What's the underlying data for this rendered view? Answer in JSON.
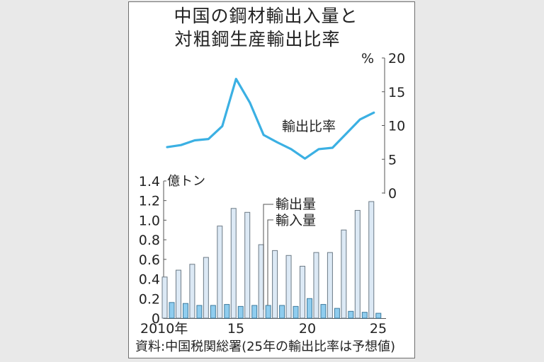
{
  "chart_data": {
    "type": "bar+line",
    "title": "中国の鋼材輸出入量と対粗鋼生産輸出比率",
    "title_lines": [
      "中国の鋼材輸出入量と",
      "対粗鋼生産輸出比率"
    ],
    "categories": [
      "2010",
      "2011",
      "2012",
      "2013",
      "2014",
      "2015",
      "2016",
      "2017",
      "2018",
      "2019",
      "2020",
      "2021",
      "2022",
      "2023",
      "2024",
      "2025"
    ],
    "xtick_labels": [
      "2010年",
      "15",
      "20",
      "25"
    ],
    "left_axis": {
      "unit": "億トン",
      "ticks": [
        "0",
        "0.2",
        "0.4",
        "0.6",
        "0.8",
        "1.0",
        "1.2",
        "1.4"
      ],
      "ylim": [
        0,
        1.4
      ]
    },
    "right_axis": {
      "unit": "%",
      "ticks": [
        "0",
        "5",
        "10",
        "15",
        "20"
      ],
      "ylim": [
        0,
        20
      ]
    },
    "series": [
      {
        "name": "輸出量",
        "type": "bar",
        "axis": "left",
        "color": "#dce9f5",
        "values": [
          0.42,
          0.49,
          0.55,
          0.62,
          0.94,
          1.12,
          1.08,
          0.75,
          0.69,
          0.64,
          0.53,
          0.67,
          0.67,
          0.9,
          1.1,
          1.19
        ]
      },
      {
        "name": "輸入量",
        "type": "bar",
        "axis": "left",
        "color": "#8fcdef",
        "values": [
          0.16,
          0.15,
          0.13,
          0.13,
          0.14,
          0.12,
          0.13,
          0.13,
          0.13,
          0.12,
          0.2,
          0.14,
          0.1,
          0.07,
          0.06,
          0.05
        ]
      },
      {
        "name": "輸出比率",
        "type": "line",
        "axis": "right",
        "color": "#3bb0e3",
        "values": [
          6.8,
          7.1,
          7.8,
          8.0,
          9.9,
          16.9,
          13.4,
          8.6,
          7.5,
          6.5,
          5.1,
          6.5,
          6.7,
          8.8,
          10.9,
          11.9
        ]
      }
    ],
    "annotations": {
      "line_label": "輸出比率",
      "export_label": "輸出量",
      "import_label": "輸入量"
    },
    "source": "資料:中国税関総署(25年の輸出比率は予想値)",
    "grid": false
  }
}
